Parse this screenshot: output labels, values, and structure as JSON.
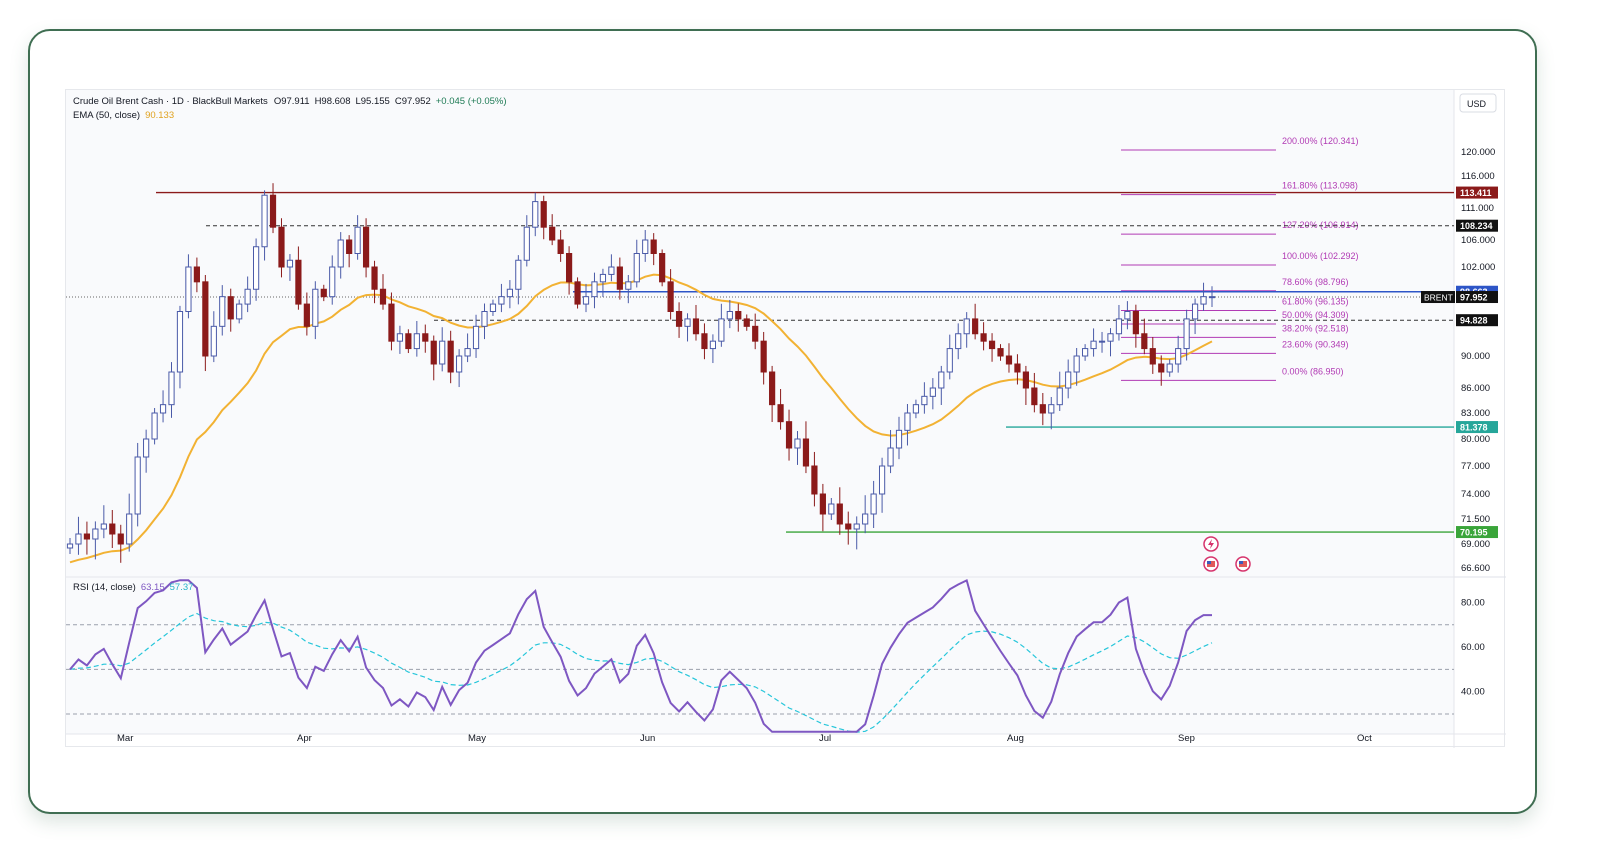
{
  "header": {
    "symbol_line": "Crude Oil Brent Cash · 1D · BlackBull Markets",
    "open": "O97.911",
    "high": "H98.608",
    "low": "L95.155",
    "close": "C97.952",
    "change": "+0.045 (+0.05%)",
    "ema_label": "EMA (50, close)",
    "ema_value": "90.133",
    "rsi_label": "RSI (14, close)",
    "rsi_value": "63.15",
    "rsi_ma_value": "57.37",
    "currency": "USD"
  },
  "colors": {
    "bull": "#4a5aa8",
    "bear": "#8b1a1a",
    "ema": "#f2b233",
    "fib": "#b13ab4",
    "resistance": "#8b1a1a",
    "blue_line": "#2d55c7",
    "support_teal": "#26a69a",
    "support_green": "#3aa53a",
    "rsi": "#7e57c2",
    "rsi_ma": "#26c6da"
  },
  "chart_data": {
    "type": "candlestick",
    "ylim": [
      66.6,
      124
    ],
    "y_ticks": [
      "120.000",
      "116.000",
      "111.000",
      "106.000",
      "102.000",
      "90.000",
      "86.000",
      "83.000",
      "80.000",
      "77.000",
      "74.000",
      "71.500",
      "69.000",
      "66.600"
    ],
    "x_ticks": [
      "Mar",
      "Apr",
      "May",
      "Jun",
      "Jul",
      "Aug",
      "Sep",
      "Oct"
    ],
    "price_tags": [
      {
        "label": "113.411",
        "value": 113.411,
        "color": "#8b1a1a"
      },
      {
        "label": "108.234",
        "value": 108.234,
        "color": "#111111"
      },
      {
        "label": "98.663",
        "value": 98.663,
        "color": "#2d55c7"
      },
      {
        "label": "97.952",
        "value": 97.952,
        "color": "#111111",
        "prefix": "BRENT"
      },
      {
        "label": "94.828",
        "value": 94.828,
        "color": "#111111"
      },
      {
        "label": "81.378",
        "value": 81.378,
        "color": "#26a69a"
      },
      {
        "label": "70.195",
        "value": 70.195,
        "color": "#3aa53a"
      }
    ],
    "fib_levels": [
      {
        "label": "200.00% (120.341)",
        "value": 120.341
      },
      {
        "label": "161.80% (113.098)",
        "value": 113.098
      },
      {
        "label": "127.20% (106.914)",
        "value": 106.914
      },
      {
        "label": "100.00% (102.292)",
        "value": 102.292
      },
      {
        "label": "78.60% (98.796)",
        "value": 98.796
      },
      {
        "label": "61.80% (96.135)",
        "value": 96.135
      },
      {
        "label": "50.00% (94.309)",
        "value": 94.309
      },
      {
        "label": "38.20% (92.518)",
        "value": 92.518
      },
      {
        "label": "23.60% (90.349)",
        "value": 90.349
      },
      {
        "label": "0.00% (86.950)",
        "value": 86.95
      }
    ],
    "close_path": [
      69,
      70,
      69.5,
      70.5,
      71,
      70,
      69,
      72,
      78,
      80,
      83,
      84,
      88,
      96,
      102,
      100,
      90,
      94,
      98,
      95,
      97,
      99,
      105,
      113,
      108,
      102,
      103,
      97,
      94,
      99,
      98,
      102,
      106,
      104,
      108,
      102,
      99,
      97,
      92,
      93,
      91,
      93,
      92,
      89,
      92,
      88,
      90,
      91,
      94,
      96,
      97,
      98,
      99,
      103,
      108,
      112,
      108,
      106,
      104,
      100,
      97,
      98,
      100,
      101,
      102,
      99,
      100,
      104,
      106,
      104,
      100,
      96,
      94,
      95,
      93,
      91,
      92,
      95,
      96,
      95,
      94,
      92,
      88,
      84,
      82,
      79,
      80,
      77,
      74,
      72,
      73,
      71,
      70.5,
      71,
      72,
      74,
      77,
      79,
      81,
      83,
      84,
      85,
      86,
      88,
      91,
      93,
      95,
      93,
      92,
      91,
      90,
      89,
      88,
      86,
      84,
      83,
      84,
      86,
      88,
      90,
      91,
      92,
      92,
      93,
      95,
      96,
      93,
      91,
      89,
      88,
      89,
      91,
      95,
      97,
      98,
      98
    ]
  },
  "rsi_data": {
    "levels": [
      70,
      50,
      30
    ],
    "y_ticks": [
      "80.00",
      "60.00",
      "40.00"
    ],
    "ylim": [
      21,
      91
    ]
  },
  "event_icons": [
    "lightning-icon",
    "us-flag-icon",
    "us-flag-icon"
  ]
}
